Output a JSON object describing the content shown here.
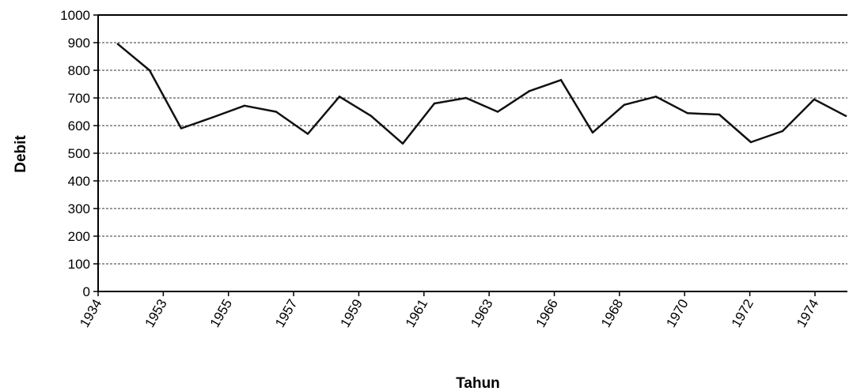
{
  "chart_data": {
    "type": "line",
    "title": "",
    "xlabel": "Tahun",
    "ylabel": "Debit",
    "ylim": [
      0,
      1000
    ],
    "yticks": [
      0,
      100,
      200,
      300,
      400,
      500,
      600,
      700,
      800,
      900,
      1000
    ],
    "x_tick_labels": [
      "1934",
      "1953",
      "1955",
      "1957",
      "1959",
      "1961",
      "1963",
      "1966",
      "1968",
      "1970",
      "1972",
      "1974"
    ],
    "grid": "horizontal dashed",
    "legend": "none",
    "line_color": "#111111",
    "series": [
      {
        "values": [
          895,
          800,
          590,
          630,
          672,
          650,
          570,
          705,
          635,
          535,
          680,
          700,
          650,
          725,
          765,
          575,
          675,
          705,
          645,
          640,
          540,
          580,
          695,
          635
        ]
      }
    ]
  }
}
